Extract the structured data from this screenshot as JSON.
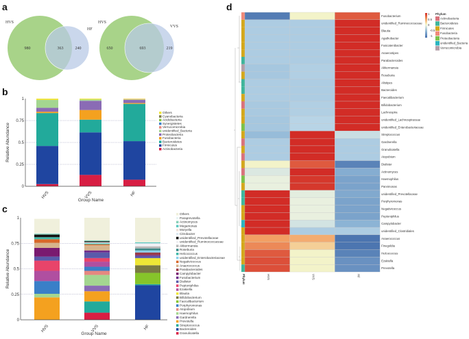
{
  "panels": {
    "a": "a",
    "b": "b",
    "c": "c",
    "d": "d"
  },
  "chart_data": [
    {
      "type": "venn",
      "id": "venn-hvs-hf",
      "sets": [
        "HVS",
        "HF"
      ],
      "only_first": "980",
      "shared": "363",
      "only_second": "240"
    },
    {
      "type": "venn",
      "id": "venn-hvs-vvs",
      "sets": [
        "HVS",
        "VVS"
      ],
      "only_first": "650",
      "shared": "693",
      "only_second": "219"
    },
    {
      "type": "bar",
      "stacked": true,
      "id": "phylum-abundance",
      "xlabel": "Group Name",
      "ylabel": "Relative Abundance",
      "ylim": [
        0,
        1
      ],
      "yticks": [
        "0",
        "0.25",
        "0.5",
        "0.75",
        "1"
      ],
      "categories": [
        "HVS",
        "VVS",
        "HF"
      ],
      "series": [
        {
          "name": "Actinobacteria",
          "color": "#d81e43",
          "values": [
            0.025,
            0.13,
            0.075
          ]
        },
        {
          "name": "Firmicutes",
          "color": "#1f45a0",
          "values": [
            0.435,
            0.485,
            0.44
          ]
        },
        {
          "name": "Bacteroidetes",
          "color": "#22aa9b",
          "values": [
            0.375,
            0.145,
            0.425
          ]
        },
        {
          "name": "Fusobacteria",
          "color": "#f4a11f",
          "values": [
            0.015,
            0.11,
            0.01
          ]
        },
        {
          "name": "Proteobacteria",
          "color": "#8a6bb5",
          "values": [
            0.045,
            0.105,
            0.035
          ]
        },
        {
          "name": "unidentified_Bacteria",
          "color": "#a4d690",
          "values": [
            0.09,
            0.015,
            0.005
          ]
        },
        {
          "name": "Verrucomicrobia",
          "color": "#e68880",
          "values": [
            0.0,
            0.0,
            0.005
          ]
        },
        {
          "name": "Synergistetes",
          "color": "#3a7fc8",
          "values": [
            0.0,
            0.0,
            0.0
          ]
        },
        {
          "name": "Acidobacteria",
          "color": "#86c442",
          "values": [
            0.0,
            0.0,
            0.0
          ]
        },
        {
          "name": "Cyanobacteria",
          "color": "#7e7a45",
          "values": [
            0.0,
            0.0,
            0.0
          ]
        },
        {
          "name": "Others",
          "color": "#efe43a",
          "values": [
            0.015,
            0.01,
            0.005
          ]
        }
      ]
    },
    {
      "type": "bar",
      "stacked": true,
      "id": "genus-abundance",
      "xlabel": "Group Name",
      "ylabel": "Relative Abundance",
      "ylim": [
        0,
        1
      ],
      "yticks": [
        "0",
        "0.25",
        "0.5",
        "0.75",
        "1"
      ],
      "categories": [
        "HVS",
        "VVS",
        "HF"
      ],
      "series": [
        {
          "name": "Granulicatella",
          "color": "#d81e43",
          "values": [
            0.0,
            0.07,
            0.0
          ]
        },
        {
          "name": "Bacteroides",
          "color": "#1f45a0",
          "values": [
            0.0,
            0.0,
            0.34
          ]
        },
        {
          "name": "Streptococcus",
          "color": "#22aa9b",
          "values": [
            0.0,
            0.11,
            0.01
          ]
        },
        {
          "name": "Prevotella",
          "color": "#f4a11f",
          "values": [
            0.22,
            0.1,
            0.0
          ]
        },
        {
          "name": "Gardnerella",
          "color": "#8a6bb5",
          "values": [
            0.0,
            0.055,
            0.0
          ]
        },
        {
          "name": "Haemophilus",
          "color": "#a4d690",
          "values": [
            0.035,
            0.105,
            0.0
          ]
        },
        {
          "name": "Atopobium",
          "color": "#e68880",
          "values": [
            0.0,
            0.04,
            0.0
          ]
        },
        {
          "name": "Porphyromonas",
          "color": "#3a7fc8",
          "values": [
            0.125,
            0.04,
            0.0
          ]
        },
        {
          "name": "Faecalibacterium",
          "color": "#86c42a",
          "values": [
            0.0,
            0.0,
            0.11
          ]
        },
        {
          "name": "Bifidobacterium",
          "color": "#7a7a42",
          "values": [
            0.0,
            0.0,
            0.075
          ]
        },
        {
          "name": "Blautia",
          "color": "#eee636",
          "values": [
            0.0,
            0.0,
            0.07
          ]
        },
        {
          "name": "Ezakiella",
          "color": "#b04fa0",
          "values": [
            0.1,
            0.05,
            0.0
          ]
        },
        {
          "name": "Peptoniphilus",
          "color": "#e8446a",
          "values": [
            0.1,
            0.035,
            0.0
          ]
        },
        {
          "name": "Dialister",
          "color": "#5a5aaa",
          "values": [
            0.04,
            0.055,
            0.02
          ]
        },
        {
          "name": "Fusobacterium",
          "color": "#6e2c8a",
          "values": [
            0.0,
            0.02,
            0.01
          ]
        },
        {
          "name": "Campylobacter",
          "color": "#7a1a70",
          "values": [
            0.085,
            0.0,
            0.0
          ]
        },
        {
          "name": "Parabacteroides",
          "color": "#9a3a48",
          "values": [
            0.0,
            0.0,
            0.025
          ]
        },
        {
          "name": "Anaerococcus",
          "color": "#d6b48c",
          "values": [
            0.05,
            0.05,
            0.0
          ]
        },
        {
          "name": "Negativicoccus",
          "color": "#d8682a",
          "values": [
            0.035,
            0.01,
            0.0
          ]
        },
        {
          "name": "unidentified_Enterobacteriaceae",
          "color": "#8ad0ea",
          "values": [
            0.0,
            0.0,
            0.02
          ]
        },
        {
          "name": "Helcococcus",
          "color": "#40b8a8",
          "values": [
            0.02,
            0.01,
            0.0
          ]
        },
        {
          "name": "Roseburia",
          "color": "#3d8a88",
          "values": [
            0.0,
            0.0,
            0.02
          ]
        },
        {
          "name": "Akkermansia",
          "color": "#b8b8b8",
          "values": [
            0.0,
            0.0,
            0.02
          ]
        },
        {
          "name": "unidentified_Ruminococcaceae",
          "color": "#f0f0f4",
          "values": [
            0.0,
            0.01,
            0.03
          ]
        },
        {
          "name": "unidentified_Prevotellaceae",
          "color": "#111111",
          "values": [
            0.025,
            0.01,
            0.0
          ]
        },
        {
          "name": "Citrobacter",
          "color": "#dde8f0",
          "values": [
            0.0,
            0.0,
            0.0
          ]
        },
        {
          "name": "Moryella",
          "color": "#f0e0d8",
          "values": [
            0.0,
            0.0,
            0.0
          ]
        },
        {
          "name": "Megamonas",
          "color": "#5cc8c0",
          "values": [
            0.0,
            0.0,
            0.01
          ]
        },
        {
          "name": "Actinomyces",
          "color": "#88d0b8",
          "values": [
            0.01,
            0.01,
            0.0
          ]
        },
        {
          "name": "Paraprevotella",
          "color": "#e8f4f4",
          "values": [
            0.005,
            0.0,
            0.0
          ]
        },
        {
          "name": "Others",
          "color": "#f0f0dc",
          "values": [
            0.14,
            0.22,
            0.24
          ]
        }
      ]
    },
    {
      "type": "heatmap",
      "id": "genus-heatmap",
      "columns": [
        "HVS",
        "VVS",
        "HF"
      ],
      "phylum_label": "Phylum",
      "colorbar_title": "",
      "colorbar_ticks": [
        "1",
        "0.5",
        "0",
        "-0.5",
        "-1"
      ],
      "phylum_legend_title": "Phylum",
      "phyla": [
        {
          "name": "Actinobacteria",
          "color": "#d9737c"
        },
        {
          "name": "Bacteroidetes",
          "color": "#3fb59c"
        },
        {
          "name": "Firmicutes",
          "color": "#d4a81c"
        },
        {
          "name": "Fusobacteria",
          "color": "#ef8a7a"
        },
        {
          "name": "Proteobacteria",
          "color": "#7cc24a"
        },
        {
          "name": "unidentified_Bacteria",
          "color": "#2bb5c0"
        },
        {
          "name": "Verrucomicrobia",
          "color": "#b39ea8"
        }
      ],
      "rows": [
        {
          "name": "Fusobacterium",
          "phylum": "Fusobacteria",
          "values": [
            -0.9,
            0.1,
            0.8
          ]
        },
        {
          "name": "unidentified_Ruminococcaceae",
          "phylum": "Firmicutes",
          "values": [
            -0.35,
            -0.35,
            1
          ]
        },
        {
          "name": "Blautia",
          "phylum": "Firmicutes",
          "values": [
            -0.35,
            -0.35,
            1
          ]
        },
        {
          "name": "Agathobacter",
          "phylum": "Firmicutes",
          "values": [
            -0.35,
            -0.35,
            1
          ]
        },
        {
          "name": "Fusicatenibacter",
          "phylum": "Firmicutes",
          "values": [
            -0.35,
            -0.35,
            1
          ]
        },
        {
          "name": "Anaerostipes",
          "phylum": "Firmicutes",
          "values": [
            -0.35,
            -0.35,
            1
          ]
        },
        {
          "name": "Parabacteroides",
          "phylum": "Bacteroidetes",
          "values": [
            -0.35,
            -0.35,
            1
          ]
        },
        {
          "name": "Akkermansia",
          "phylum": "Verrucomicrobia",
          "values": [
            -0.38,
            -0.33,
            1
          ]
        },
        {
          "name": "Roseburia",
          "phylum": "Firmicutes",
          "values": [
            -0.38,
            -0.33,
            1
          ]
        },
        {
          "name": "Alistipes",
          "phylum": "Bacteroidetes",
          "values": [
            -0.35,
            -0.35,
            1
          ]
        },
        {
          "name": "Bacteroides",
          "phylum": "Bacteroidetes",
          "values": [
            -0.35,
            -0.35,
            1
          ]
        },
        {
          "name": "Faecalibacterium",
          "phylum": "Firmicutes",
          "values": [
            -0.35,
            -0.35,
            1
          ]
        },
        {
          "name": "Bifidobacterium",
          "phylum": "Actinobacteria",
          "values": [
            -0.37,
            -0.33,
            1
          ]
        },
        {
          "name": "Lachnospira",
          "phylum": "Firmicutes",
          "values": [
            -0.37,
            -0.33,
            1
          ]
        },
        {
          "name": "unidentified_Lachnospiraceae",
          "phylum": "Firmicutes",
          "values": [
            -0.38,
            -0.3,
            1
          ]
        },
        {
          "name": "unidentified_Enterobacteriaceae",
          "phylum": "Proteobacteria",
          "values": [
            -0.38,
            -0.3,
            1
          ]
        },
        {
          "name": "Streptococcus",
          "phylum": "Firmicutes",
          "values": [
            -0.45,
            1,
            -0.2
          ]
        },
        {
          "name": "Gardnerella",
          "phylum": "Actinobacteria",
          "values": [
            -0.35,
            1,
            -0.35
          ]
        },
        {
          "name": "Granulicatella",
          "phylum": "Firmicutes",
          "values": [
            -0.35,
            1,
            -0.35
          ]
        },
        {
          "name": "Atopobium",
          "phylum": "Actinobacteria",
          "values": [
            -0.35,
            1,
            -0.35
          ]
        },
        {
          "name": "Dialister",
          "phylum": "Firmicutes",
          "values": [
            0.1,
            0.8,
            -0.85
          ]
        },
        {
          "name": "Actinomyces",
          "phylum": "Actinobacteria",
          "values": [
            -0.1,
            1,
            -0.55
          ]
        },
        {
          "name": "Haemophilus",
          "phylum": "Proteobacteria",
          "values": [
            -0.02,
            0.95,
            -0.62
          ]
        },
        {
          "name": "Parvimonas",
          "phylum": "Firmicutes",
          "values": [
            -0.02,
            0.95,
            -0.62
          ]
        },
        {
          "name": "unidentified_Prevotellaceae",
          "phylum": "Bacteroidetes",
          "values": [
            1,
            -0.05,
            -0.58
          ]
        },
        {
          "name": "Porphyromonas",
          "phylum": "Bacteroidetes",
          "values": [
            1,
            -0.02,
            -0.62
          ]
        },
        {
          "name": "Negativicoccus",
          "phylum": "Firmicutes",
          "values": [
            1,
            -0.02,
            -0.62
          ]
        },
        {
          "name": "Peptoniphilus",
          "phylum": "Firmicutes",
          "values": [
            1,
            -0.02,
            -0.62
          ]
        },
        {
          "name": "Campylobacter",
          "phylum": "unidentified_Bacteria",
          "values": [
            1,
            -0.15,
            -0.5
          ]
        },
        {
          "name": "unidentified_Clostridiales",
          "phylum": "Firmicutes",
          "values": [
            1,
            -0.35,
            -0.35
          ]
        },
        {
          "name": "Anaerococcus",
          "phylum": "Firmicutes",
          "values": [
            0.5,
            0.45,
            -0.95
          ]
        },
        {
          "name": "Finegoldia",
          "phylum": "Firmicutes",
          "values": [
            0.6,
            0.3,
            -0.95
          ]
        },
        {
          "name": "Helcococcus",
          "phylum": "Firmicutes",
          "values": [
            0.8,
            0.1,
            -0.85
          ]
        },
        {
          "name": "Ezakiella",
          "phylum": "Firmicutes",
          "values": [
            0.85,
            0.1,
            -0.75
          ]
        },
        {
          "name": "Prevotella",
          "phylum": "Bacteroidetes",
          "values": [
            0.85,
            0.1,
            -0.75
          ]
        }
      ]
    }
  ]
}
